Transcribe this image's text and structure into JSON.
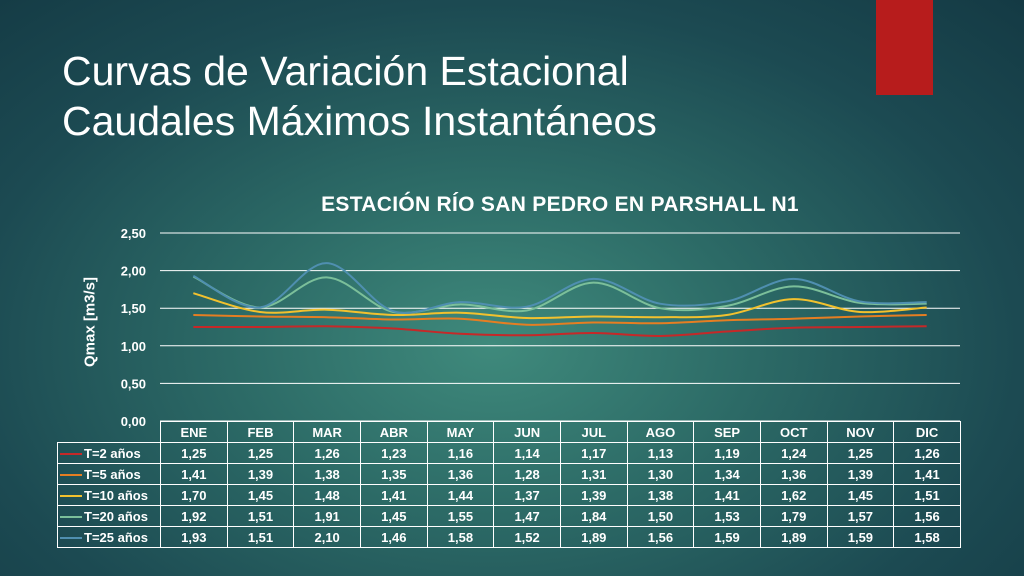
{
  "slide": {
    "title_line1": "Curvas de Variación Estacional",
    "title_line2": "Caudales Máximos Instantáneos"
  },
  "colors": {
    "accent": "#b71c1c",
    "grid": "#ffffff"
  },
  "chart_data": {
    "type": "line",
    "title": "ESTACIÓN RÍO SAN PEDRO EN PARSHALL N1",
    "xlabel": "",
    "ylabel": "Qmax  [m3/s]",
    "ylim": [
      0,
      2.5
    ],
    "yticks": [
      "0,00",
      "0,50",
      "1,00",
      "1,50",
      "2,00",
      "2,50"
    ],
    "grid": true,
    "legend": "data-table",
    "categories": [
      "ENE",
      "FEB",
      "MAR",
      "ABR",
      "MAY",
      "JUN",
      "JUL",
      "AGO",
      "SEP",
      "OCT",
      "NOV",
      "DIC"
    ],
    "series": [
      {
        "name": "T=2 años",
        "color": "#c62828",
        "values": [
          1.25,
          1.25,
          1.26,
          1.23,
          1.16,
          1.14,
          1.17,
          1.13,
          1.19,
          1.24,
          1.25,
          1.26
        ],
        "labels": [
          "1,25",
          "1,25",
          "1,26",
          "1,23",
          "1,16",
          "1,14",
          "1,17",
          "1,13",
          "1,19",
          "1,24",
          "1,25",
          "1,26"
        ]
      },
      {
        "name": "T=5 años",
        "color": "#e67e22",
        "values": [
          1.41,
          1.39,
          1.38,
          1.35,
          1.36,
          1.28,
          1.31,
          1.3,
          1.34,
          1.36,
          1.39,
          1.41
        ],
        "labels": [
          "1,41",
          "1,39",
          "1,38",
          "1,35",
          "1,36",
          "1,28",
          "1,31",
          "1,30",
          "1,34",
          "1,36",
          "1,39",
          "1,41"
        ]
      },
      {
        "name": "T=10 años",
        "color": "#f2c12e",
        "values": [
          1.7,
          1.45,
          1.48,
          1.41,
          1.44,
          1.37,
          1.39,
          1.38,
          1.41,
          1.62,
          1.45,
          1.51
        ],
        "labels": [
          "1,70",
          "1,45",
          "1,48",
          "1,41",
          "1,44",
          "1,37",
          "1,39",
          "1,38",
          "1,41",
          "1,62",
          "1,45",
          "1,51"
        ]
      },
      {
        "name": "T=20 años",
        "color": "#7bbf9a",
        "values": [
          1.92,
          1.51,
          1.91,
          1.45,
          1.55,
          1.47,
          1.84,
          1.5,
          1.53,
          1.79,
          1.57,
          1.56
        ],
        "labels": [
          "1,92",
          "1,51",
          "1,91",
          "1,45",
          "1,55",
          "1,47",
          "1,84",
          "1,50",
          "1,53",
          "1,79",
          "1,57",
          "1,56"
        ]
      },
      {
        "name": "T=25 años",
        "color": "#4f8fb0",
        "values": [
          1.93,
          1.51,
          2.1,
          1.46,
          1.58,
          1.52,
          1.89,
          1.56,
          1.59,
          1.89,
          1.59,
          1.58
        ],
        "labels": [
          "1,93",
          "1,51",
          "2,10",
          "1,46",
          "1,58",
          "1,52",
          "1,89",
          "1,56",
          "1,59",
          "1,89",
          "1,59",
          "1,58"
        ]
      }
    ]
  }
}
